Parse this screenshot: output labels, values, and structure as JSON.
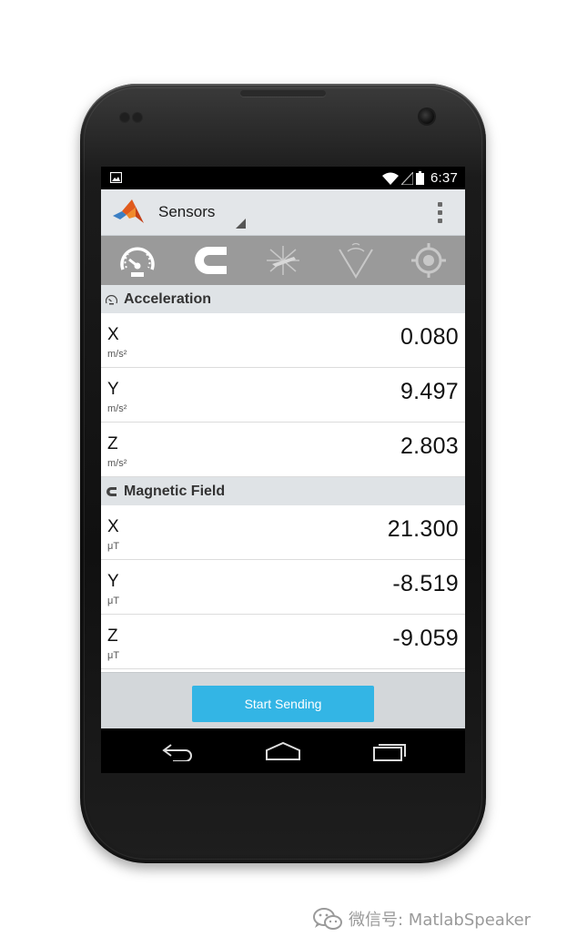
{
  "status_bar": {
    "time": "6:37",
    "icons": [
      "image-icon",
      "wifi-icon",
      "signal-icon",
      "battery-icon"
    ]
  },
  "action_bar": {
    "title": "Sensors",
    "logo": "matlab-logo",
    "menu_icon": "overflow-menu-icon"
  },
  "tabs": [
    {
      "name": "acceleration",
      "icon": "speedometer-icon",
      "active": true
    },
    {
      "name": "magnetic-field",
      "icon": "magnet-icon",
      "active": true
    },
    {
      "name": "orientation",
      "icon": "axes-icon",
      "active": false
    },
    {
      "name": "angular-velocity",
      "icon": "angle-icon",
      "active": false
    },
    {
      "name": "position",
      "icon": "target-icon",
      "active": false
    }
  ],
  "sections": [
    {
      "title": "Acceleration",
      "icon": "speedometer-icon",
      "rows": [
        {
          "axis": "X",
          "unit": "m/s²",
          "value": "0.080"
        },
        {
          "axis": "Y",
          "unit": "m/s²",
          "value": "9.497"
        },
        {
          "axis": "Z",
          "unit": "m/s²",
          "value": "2.803"
        }
      ]
    },
    {
      "title": "Magnetic Field",
      "icon": "magnet-icon",
      "rows": [
        {
          "axis": "X",
          "unit": "μT",
          "value": "21.300"
        },
        {
          "axis": "Y",
          "unit": "μT",
          "value": "-8.519"
        },
        {
          "axis": "Z",
          "unit": "μT",
          "value": "-9.059"
        }
      ]
    }
  ],
  "start_button": {
    "label": "Start Sending"
  },
  "nav_bar": {
    "icons": [
      "back-icon",
      "home-icon",
      "recent-apps-icon"
    ]
  },
  "watermark": {
    "text": "微信号: MatlabSpeaker",
    "icon": "wechat-icon"
  },
  "colors": {
    "accent": "#33b5e5",
    "action_bar": "#e3e6e9",
    "section_header": "#dfe3e6",
    "tab_strip": "#9a9a9a"
  }
}
